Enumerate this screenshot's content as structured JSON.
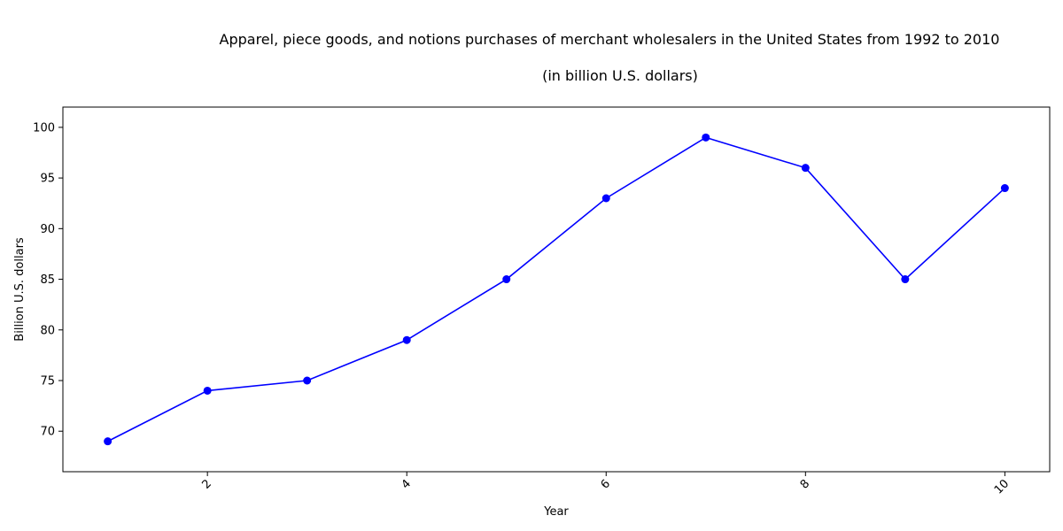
{
  "chart_data": {
    "type": "line",
    "title": "Apparel, piece goods, and notions purchases of merchant wholesalers in the United States from 1992 to 2010",
    "subtitle": "(in billion U.S. dollars)",
    "xlabel": "Year",
    "ylabel": "Billion U.S. dollars",
    "x": [
      1,
      2,
      3,
      4,
      5,
      6,
      7,
      8,
      9,
      10
    ],
    "series": [
      {
        "values": [
          69,
          74,
          75,
          79,
          85,
          93,
          99,
          96,
          85,
          94
        ],
        "color": "#0000ff"
      }
    ],
    "xlim": [
      0.55,
      10.45
    ],
    "ylim": [
      66.0,
      102.0
    ],
    "xticks": [
      2,
      4,
      6,
      8,
      10
    ],
    "yticks": [
      70,
      75,
      80,
      85,
      90,
      95,
      100
    ],
    "x_tick_rotation": 45,
    "grid": false,
    "legend": "none"
  }
}
